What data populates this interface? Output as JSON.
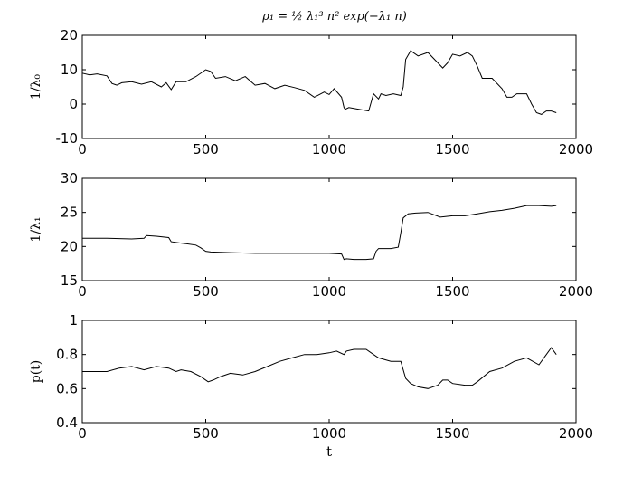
{
  "chart_data": [
    {
      "type": "line",
      "title": "ρ₁ = ½ λ₁³ n² exp(−λ₁ n)",
      "xlabel": "",
      "ylabel": "1/λ₀",
      "xlim": [
        0,
        2000
      ],
      "ylim": [
        -10,
        20
      ],
      "xticks": [
        0,
        500,
        1000,
        1500,
        2000
      ],
      "yticks": [
        -10,
        0,
        10,
        20
      ],
      "grid": false,
      "series": [
        {
          "x": [
            0,
            30,
            60,
            100,
            120,
            140,
            160,
            200,
            240,
            280,
            320,
            340,
            360,
            380,
            420,
            460,
            500,
            520,
            540,
            580,
            620,
            660,
            700,
            740,
            780,
            820,
            860,
            900,
            940,
            980,
            1000,
            1020,
            1050,
            1060,
            1065,
            1080,
            1120,
            1160,
            1180,
            1200,
            1210,
            1230,
            1260,
            1290,
            1300,
            1310,
            1330,
            1360,
            1400,
            1440,
            1460,
            1480,
            1500,
            1530,
            1560,
            1580,
            1600,
            1620,
            1660,
            1700,
            1720,
            1740,
            1760,
            1800,
            1820,
            1840,
            1860,
            1880,
            1900,
            1920
          ],
          "y": [
            9,
            8.5,
            8.8,
            8.2,
            6,
            5.5,
            6.2,
            6.5,
            5.8,
            6.5,
            5,
            6.2,
            4.2,
            6.5,
            6.5,
            8,
            10,
            9.5,
            7.5,
            8,
            6.8,
            8,
            5.5,
            6,
            4.5,
            5.5,
            4.8,
            4,
            2,
            3.5,
            2.8,
            4.5,
            2,
            -1,
            -1.5,
            -1,
            -1.5,
            -2,
            3,
            1.5,
            3,
            2.5,
            3,
            2.5,
            5,
            13,
            15.5,
            14,
            15,
            12,
            10.5,
            12,
            14.5,
            14,
            15,
            14,
            11,
            7.5,
            7.5,
            4.5,
            2,
            2,
            3,
            3,
            0,
            -2.5,
            -3,
            -2,
            -2,
            -2.5
          ]
        }
      ]
    },
    {
      "type": "line",
      "title": "",
      "xlabel": "",
      "ylabel": "1/λ₁",
      "xlim": [
        0,
        2000
      ],
      "ylim": [
        15,
        30
      ],
      "xticks": [
        0,
        500,
        1000,
        1500,
        2000
      ],
      "yticks": [
        15,
        20,
        25,
        30
      ],
      "grid": false,
      "series": [
        {
          "x": [
            0,
            100,
            200,
            250,
            260,
            300,
            350,
            360,
            400,
            420,
            460,
            480,
            500,
            520,
            600,
            700,
            800,
            900,
            1000,
            1050,
            1060,
            1070,
            1100,
            1150,
            1180,
            1190,
            1200,
            1250,
            1280,
            1290,
            1300,
            1320,
            1350,
            1400,
            1450,
            1500,
            1550,
            1600,
            1650,
            1700,
            1750,
            1800,
            1850,
            1900,
            1920
          ],
          "y": [
            21.2,
            21.2,
            21.1,
            21.2,
            21.6,
            21.5,
            21.3,
            20.7,
            20.5,
            20.4,
            20.2,
            19.8,
            19.3,
            19.2,
            19.1,
            19.0,
            19.0,
            19.0,
            19.0,
            18.9,
            18.1,
            18.2,
            18.1,
            18.1,
            18.2,
            19.3,
            19.7,
            19.7,
            19.9,
            22.0,
            24.2,
            24.8,
            24.9,
            25.0,
            24.3,
            24.5,
            24.5,
            24.8,
            25.1,
            25.3,
            25.6,
            26.0,
            26.0,
            25.9,
            26.0
          ]
        }
      ]
    },
    {
      "type": "line",
      "title": "",
      "xlabel": "t",
      "ylabel": "p(t)",
      "xlim": [
        0,
        2000
      ],
      "ylim": [
        0.4,
        1
      ],
      "xticks": [
        0,
        500,
        1000,
        1500,
        2000
      ],
      "yticks": [
        0.4,
        0.6,
        0.8,
        1
      ],
      "grid": false,
      "series": [
        {
          "x": [
            0,
            30,
            100,
            150,
            200,
            250,
            300,
            350,
            380,
            400,
            440,
            480,
            510,
            530,
            560,
            600,
            650,
            700,
            750,
            800,
            850,
            900,
            950,
            1000,
            1030,
            1060,
            1070,
            1100,
            1150,
            1180,
            1200,
            1250,
            1290,
            1310,
            1330,
            1360,
            1400,
            1440,
            1460,
            1480,
            1500,
            1550,
            1580,
            1600,
            1650,
            1700,
            1750,
            1800,
            1850,
            1880,
            1900,
            1920
          ],
          "y": [
            0.7,
            0.7,
            0.7,
            0.72,
            0.73,
            0.71,
            0.73,
            0.72,
            0.7,
            0.71,
            0.7,
            0.67,
            0.64,
            0.65,
            0.67,
            0.69,
            0.68,
            0.7,
            0.73,
            0.76,
            0.78,
            0.8,
            0.8,
            0.81,
            0.82,
            0.8,
            0.82,
            0.83,
            0.83,
            0.8,
            0.78,
            0.76,
            0.76,
            0.66,
            0.63,
            0.61,
            0.6,
            0.62,
            0.65,
            0.65,
            0.63,
            0.62,
            0.62,
            0.64,
            0.7,
            0.72,
            0.76,
            0.78,
            0.74,
            0.8,
            0.84,
            0.8
          ]
        }
      ]
    }
  ]
}
